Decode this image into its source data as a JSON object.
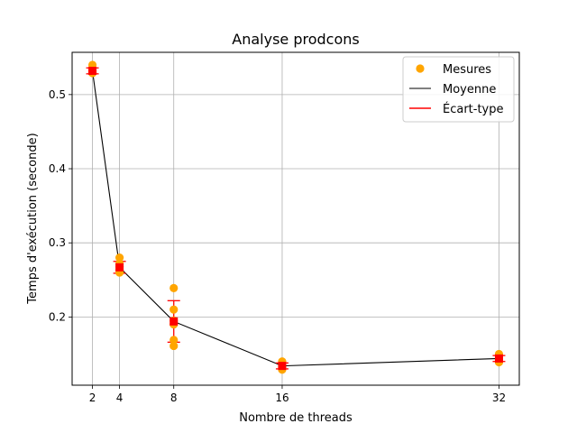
{
  "chart_data": {
    "type": "scatter",
    "title": "Analyse prodcons",
    "xlabel": "Nombre de threads",
    "ylabel": "Temps d'exécution (seconde)",
    "xlim": [
      0.5,
      33.5
    ],
    "ylim": [
      0.108,
      0.557
    ],
    "xticks": [
      2,
      4,
      8,
      16,
      32
    ],
    "yticks": [
      0.2,
      0.3,
      0.4,
      0.5
    ],
    "grid": true,
    "legend_position": "top-right",
    "legend": [
      "Mesures",
      "Moyenne",
      "Écart-type"
    ],
    "colors": {
      "measurements": "#ffa500",
      "mean": "#000000",
      "stddev": "#ff0000",
      "grid": "#b0b0b0"
    },
    "series": [
      {
        "name": "Mesures",
        "kind": "scatter",
        "points": [
          [
            2,
            0.54
          ],
          [
            2,
            0.532
          ],
          [
            2,
            0.53
          ],
          [
            2,
            0.529
          ],
          [
            4,
            0.28
          ],
          [
            4,
            0.272
          ],
          [
            4,
            0.268
          ],
          [
            4,
            0.263
          ],
          [
            4,
            0.26
          ],
          [
            8,
            0.239
          ],
          [
            8,
            0.21
          ],
          [
            8,
            0.195
          ],
          [
            8,
            0.19
          ],
          [
            8,
            0.169
          ],
          [
            8,
            0.161
          ],
          [
            16,
            0.14
          ],
          [
            16,
            0.135
          ],
          [
            16,
            0.132
          ],
          [
            16,
            0.13
          ],
          [
            16,
            0.129
          ],
          [
            32,
            0.15
          ],
          [
            32,
            0.145
          ],
          [
            32,
            0.143
          ],
          [
            32,
            0.14
          ],
          [
            32,
            0.139
          ]
        ]
      },
      {
        "name": "Moyenne",
        "kind": "line",
        "x": [
          2,
          4,
          8,
          16,
          32
        ],
        "y": [
          0.532,
          0.267,
          0.194,
          0.134,
          0.144
        ]
      },
      {
        "name": "Écart-type",
        "kind": "errorbar",
        "x": [
          2,
          4,
          8,
          16,
          32
        ],
        "mean": [
          0.532,
          0.267,
          0.194,
          0.134,
          0.144
        ],
        "std": [
          0.004,
          0.008,
          0.028,
          0.004,
          0.004
        ]
      }
    ]
  }
}
